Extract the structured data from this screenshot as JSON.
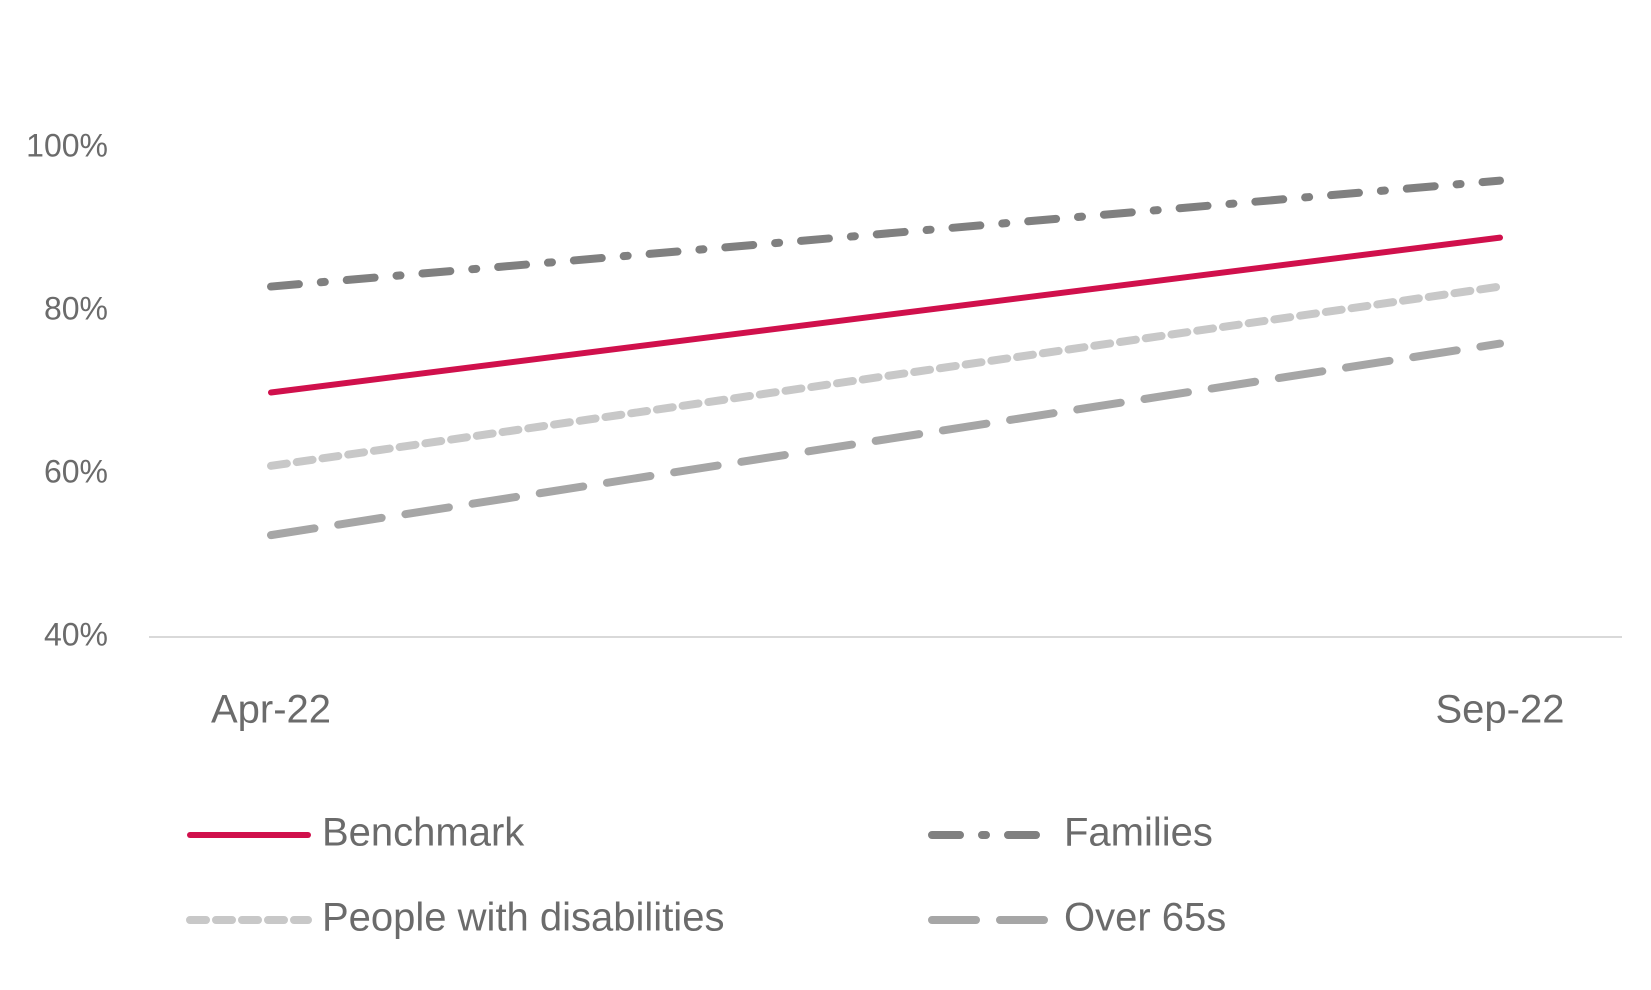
{
  "chart_data": {
    "type": "line",
    "categories": [
      "Apr-22",
      "Sep-22"
    ],
    "series": [
      {
        "name": "Benchmark",
        "color": "#d0104c",
        "dash": "solid",
        "values": [
          70,
          89
        ]
      },
      {
        "name": "Families",
        "color": "#808080",
        "dash": "dash-dot",
        "values": [
          83,
          96
        ]
      },
      {
        "name": "People with disabilities",
        "color": "#c8c8c8",
        "dash": "short-dash",
        "values": [
          61,
          83
        ]
      },
      {
        "name": "Over 65s",
        "color": "#a6a6a6",
        "dash": "long-dash",
        "values": [
          52.5,
          76
        ]
      }
    ],
    "ylim": [
      40,
      100
    ],
    "yticks": [
      {
        "value": 40,
        "label": "40%"
      },
      {
        "value": 60,
        "label": "60%"
      },
      {
        "value": 80,
        "label": "80%"
      },
      {
        "value": 100,
        "label": "100%"
      }
    ],
    "legend": "bottom"
  }
}
